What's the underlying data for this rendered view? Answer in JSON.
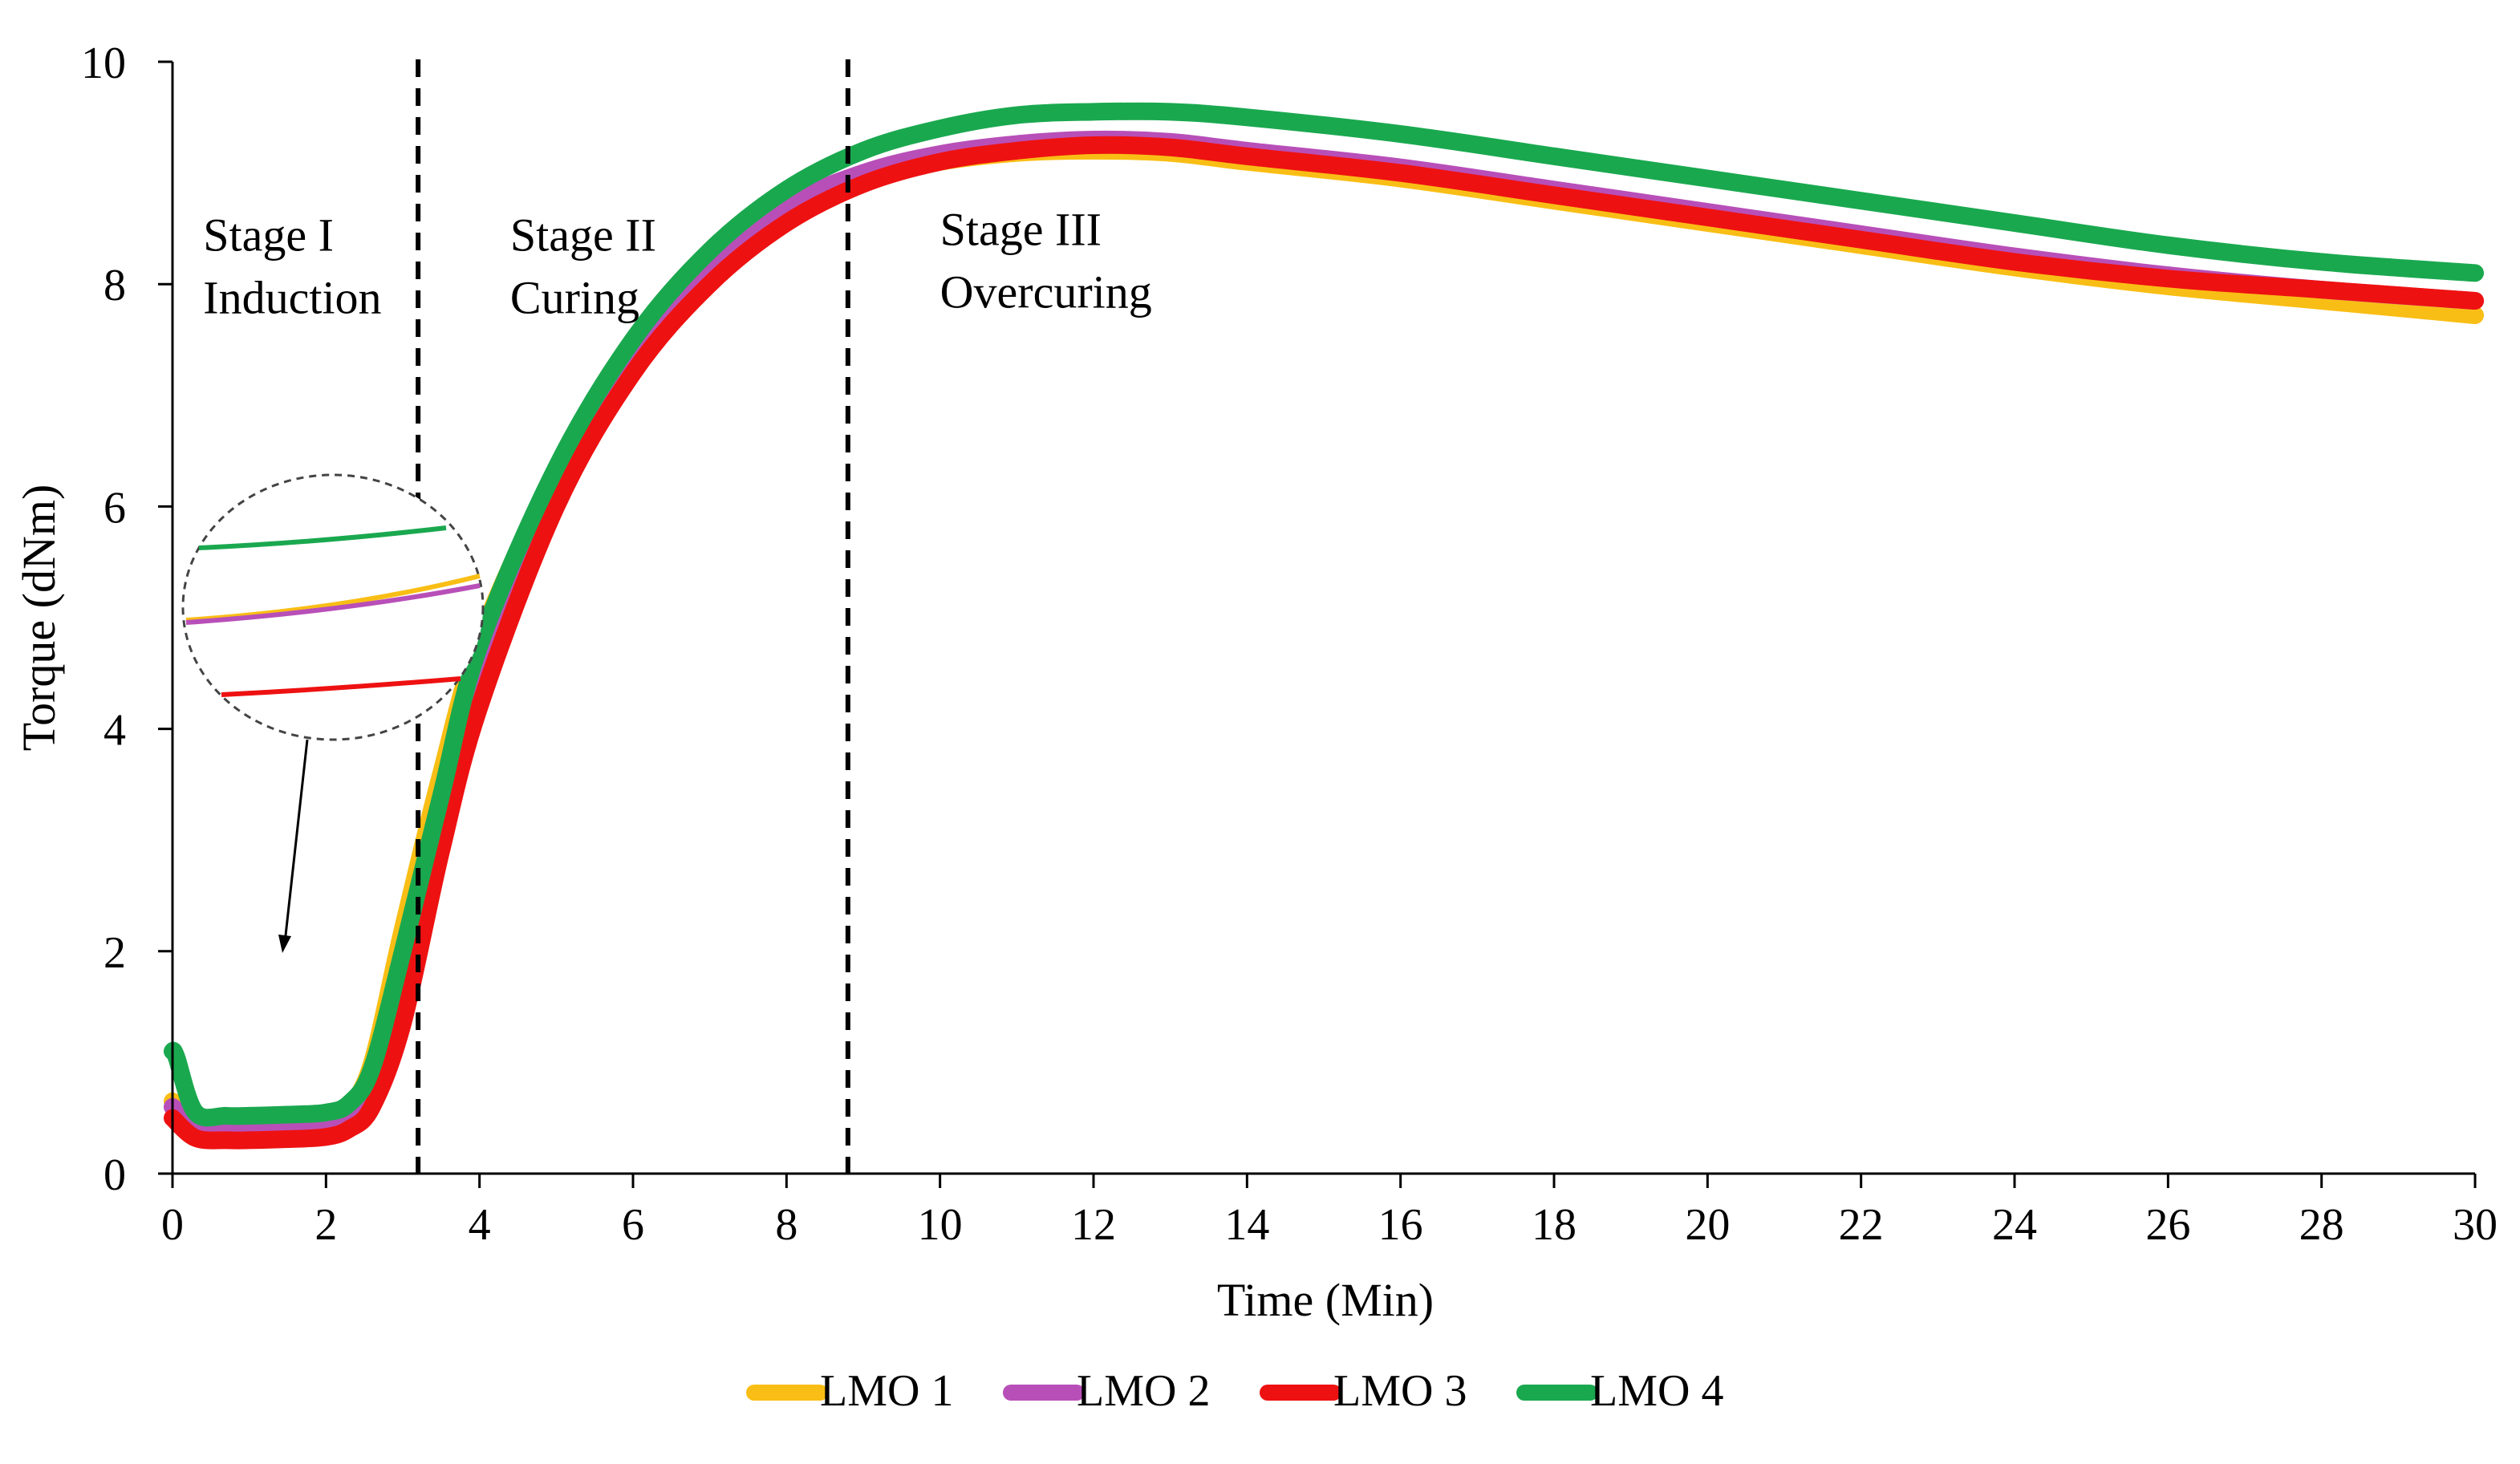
{
  "chart_data": {
    "type": "line",
    "title": "",
    "xlabel": "Time (Min)",
    "ylabel": "Torque (dNm)",
    "xlim": [
      0,
      30
    ],
    "ylim": [
      0,
      10
    ],
    "xticks": [
      0,
      2,
      4,
      6,
      8,
      10,
      12,
      14,
      16,
      18,
      20,
      22,
      24,
      26,
      28,
      30
    ],
    "yticks": [
      0,
      2,
      4,
      6,
      8,
      10
    ],
    "grid": false,
    "legend_position": "bottom",
    "stage_boundaries": [
      3.2,
      8.8
    ],
    "annotations": [
      {
        "id": "stage1",
        "lines": [
          "Stage I",
          "Induction"
        ],
        "x": 0.4,
        "y": 8.3
      },
      {
        "id": "stage2",
        "lines": [
          "Stage II",
          "Curing"
        ],
        "x": 4.4,
        "y": 8.3
      },
      {
        "id": "stage3",
        "lines": [
          "Stage III",
          "Overcuring"
        ],
        "x": 10.0,
        "y": 8.35
      }
    ],
    "inset": {
      "description": "zoom of induction region",
      "points_to": {
        "x": 1.5,
        "y": 2.0
      }
    },
    "series": [
      {
        "name": "LMO 1",
        "color": "#F9BE15",
        "x": [
          0,
          0.3,
          0.7,
          1.0,
          1.5,
          2.0,
          2.3,
          2.6,
          3.0,
          3.5,
          4.0,
          5.0,
          6.0,
          7.0,
          8.0,
          9.0,
          10.0,
          11.0,
          12.0,
          13.0,
          14.0,
          16.0,
          18.0,
          20.0,
          22.0,
          24.0,
          26.0,
          28.0,
          30.0
        ],
        "y": [
          0.65,
          0.5,
          0.47,
          0.47,
          0.48,
          0.5,
          0.6,
          1.0,
          2.2,
          3.6,
          4.8,
          6.3,
          7.4,
          8.15,
          8.65,
          8.95,
          9.1,
          9.18,
          9.2,
          9.18,
          9.1,
          8.95,
          8.75,
          8.55,
          8.35,
          8.15,
          7.98,
          7.85,
          7.72
        ]
      },
      {
        "name": "LMO 2",
        "color": "#B84FB8",
        "x": [
          0,
          0.3,
          0.7,
          1.0,
          1.5,
          2.0,
          2.3,
          2.6,
          3.0,
          3.5,
          4.0,
          5.0,
          6.0,
          7.0,
          8.0,
          9.0,
          10.0,
          11.0,
          12.0,
          13.0,
          14.0,
          16.0,
          18.0,
          20.0,
          22.0,
          24.0,
          26.0,
          28.0,
          30.0
        ],
        "y": [
          0.6,
          0.45,
          0.42,
          0.42,
          0.43,
          0.45,
          0.52,
          0.85,
          1.9,
          3.3,
          4.6,
          6.2,
          7.35,
          8.15,
          8.7,
          9.0,
          9.17,
          9.26,
          9.3,
          9.28,
          9.2,
          9.05,
          8.85,
          8.65,
          8.45,
          8.25,
          8.08,
          7.95,
          7.85
        ]
      },
      {
        "name": "LMO 3",
        "color": "#EE1111",
        "x": [
          0,
          0.3,
          0.7,
          1.0,
          1.5,
          2.0,
          2.3,
          2.6,
          3.0,
          3.5,
          4.0,
          5.0,
          6.0,
          7.0,
          8.0,
          9.0,
          10.0,
          11.0,
          12.0,
          13.0,
          14.0,
          16.0,
          18.0,
          20.0,
          22.0,
          24.0,
          26.0,
          28.0,
          30.0
        ],
        "y": [
          0.5,
          0.32,
          0.3,
          0.3,
          0.31,
          0.33,
          0.4,
          0.6,
          1.35,
          2.9,
          4.2,
          6.0,
          7.2,
          8.0,
          8.55,
          8.9,
          9.1,
          9.2,
          9.25,
          9.23,
          9.15,
          9.0,
          8.8,
          8.6,
          8.4,
          8.2,
          8.05,
          7.95,
          7.85
        ]
      },
      {
        "name": "LMO 4",
        "color": "#1AA84F",
        "x": [
          0,
          0.05,
          0.3,
          0.7,
          1.0,
          1.5,
          2.0,
          2.3,
          2.6,
          3.0,
          3.5,
          4.0,
          5.0,
          6.0,
          7.0,
          8.0,
          9.0,
          10.0,
          11.0,
          12.0,
          13.0,
          14.0,
          16.0,
          18.0,
          20.0,
          22.0,
          24.0,
          26.0,
          28.0,
          30.0
        ],
        "y": [
          1.1,
          1.05,
          0.55,
          0.52,
          0.52,
          0.53,
          0.55,
          0.63,
          0.95,
          2.0,
          3.4,
          4.75,
          6.35,
          7.5,
          8.3,
          8.85,
          9.2,
          9.4,
          9.52,
          9.55,
          9.55,
          9.5,
          9.35,
          9.15,
          8.95,
          8.75,
          8.55,
          8.35,
          8.2,
          8.1
        ]
      }
    ]
  }
}
